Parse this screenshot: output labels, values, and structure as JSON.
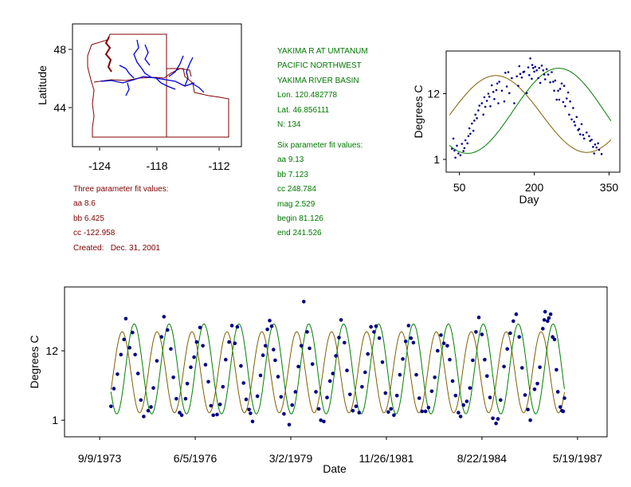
{
  "colors": {
    "map_outline": "#800000",
    "rivers": "#0000dd",
    "points": "#000080",
    "fit_six": "#008000",
    "fit_three": "#806000",
    "info_left": "#800000",
    "info_right": "#007700"
  },
  "map": {
    "ylabel": "Latitude",
    "x_ticks": [
      "-124",
      "-118",
      "-112"
    ],
    "y_ticks": [
      "48",
      "44"
    ]
  },
  "info_left": {
    "heading": "Three parameter fit values:",
    "aa": "aa 8.6",
    "bb": "bb 6.425",
    "cc": "cc -122.958",
    "created": "Created:   Dec. 31, 2001"
  },
  "info_right": {
    "station": "YAKIMA R AT UMTANUM",
    "region": "PACIFIC NORTHWEST",
    "basin": "YAKIMA RIVER BASIN",
    "lon": "Lon. 120.482778",
    "lat": "Lat. 46.856111",
    "n": "N: 134",
    "heading": "Six parameter fit values:",
    "aa": "aa 9.13",
    "bb": "bb 7.123",
    "cc": "cc 248.784",
    "mag": "mag 2.529",
    "begin": "begin 81.126",
    "end": "end 241.526"
  },
  "chart_data": [
    {
      "type": "scatter",
      "xlabel": "Day",
      "ylabel": "Degrees C",
      "xlim": [
        25,
        370
      ],
      "ylim": [
        -1,
        19
      ],
      "x_ticks": [
        "50",
        "200",
        "350"
      ],
      "y_ticks": [
        "12",
        "1"
      ],
      "x_tick_values": [
        50,
        200,
        350
      ],
      "y_tick_values": [
        12,
        1
      ],
      "points": [
        [
          35,
          2.8
        ],
        [
          38,
          4.5
        ],
        [
          40,
          2.5
        ],
        [
          42,
          1.3
        ],
        [
          45,
          3.3
        ],
        [
          48,
          2.0
        ],
        [
          52,
          1.7
        ],
        [
          55,
          3.6
        ],
        [
          58,
          2.4
        ],
        [
          60,
          2.9
        ],
        [
          62,
          4.2
        ],
        [
          66,
          3.7
        ],
        [
          68,
          4.9
        ],
        [
          70,
          6.2
        ],
        [
          72,
          5.3
        ],
        [
          75,
          7.0
        ],
        [
          78,
          5.8
        ],
        [
          80,
          7.5
        ],
        [
          82,
          8.5
        ],
        [
          85,
          7.9
        ],
        [
          88,
          9.2
        ],
        [
          90,
          10.0
        ],
        [
          95,
          10.4
        ],
        [
          98,
          8.5
        ],
        [
          100,
          11.4
        ],
        [
          102,
          9.8
        ],
        [
          105,
          10.8
        ],
        [
          108,
          12.0
        ],
        [
          110,
          11.5
        ],
        [
          112,
          9.9
        ],
        [
          115,
          13.4
        ],
        [
          118,
          12.3
        ],
        [
          120,
          11.1
        ],
        [
          124,
          12.6
        ],
        [
          126,
          13.7
        ],
        [
          128,
          10.4
        ],
        [
          130,
          14.0
        ],
        [
          135,
          12.5
        ],
        [
          140,
          10.7
        ],
        [
          142,
          15.5
        ],
        [
          145,
          13.2
        ],
        [
          148,
          15.6
        ],
        [
          150,
          12.1
        ],
        [
          155,
          14.6
        ],
        [
          160,
          10.4
        ],
        [
          165,
          14.9
        ],
        [
          168,
          13.3
        ],
        [
          170,
          16.6
        ],
        [
          172,
          15.3
        ],
        [
          175,
          14.7
        ],
        [
          178,
          15.6
        ],
        [
          180,
          15.7
        ],
        [
          185,
          12.1
        ],
        [
          188,
          16.4
        ],
        [
          190,
          15.1
        ],
        [
          192,
          17.9
        ],
        [
          195,
          14.5
        ],
        [
          196,
          16.8
        ],
        [
          198,
          16.3
        ],
        [
          200,
          15.7
        ],
        [
          202,
          16.5
        ],
        [
          205,
          15.9
        ],
        [
          208,
          14.6
        ],
        [
          210,
          16.3
        ],
        [
          212,
          13.8
        ],
        [
          215,
          16.7
        ],
        [
          218,
          15.9
        ],
        [
          220,
          15.2
        ],
        [
          222,
          14.4
        ],
        [
          225,
          16.1
        ],
        [
          228,
          15.2
        ],
        [
          232,
          13.9
        ],
        [
          235,
          15.6
        ],
        [
          238,
          14.0
        ],
        [
          240,
          12.5
        ],
        [
          242,
          14.2
        ],
        [
          245,
          11.0
        ],
        [
          248,
          12.5
        ],
        [
          250,
          11.0
        ],
        [
          252,
          12.8
        ],
        [
          255,
          13.7
        ],
        [
          258,
          10.6
        ],
        [
          260,
          13.3
        ],
        [
          262,
          9.9
        ],
        [
          265,
          11.2
        ],
        [
          268,
          12.2
        ],
        [
          270,
          8.5
        ],
        [
          272,
          10.7
        ],
        [
          275,
          7.7
        ],
        [
          278,
          9.6
        ],
        [
          280,
          7.3
        ],
        [
          282,
          6.7
        ],
        [
          285,
          8.1
        ],
        [
          288,
          5.9
        ],
        [
          290,
          6.1
        ],
        [
          292,
          5.2
        ],
        [
          295,
          6.9
        ],
        [
          298,
          5.1
        ],
        [
          300,
          4.5
        ],
        [
          305,
          5.5
        ],
        [
          310,
          4.9
        ],
        [
          312,
          4.1
        ],
        [
          315,
          4.3
        ],
        [
          318,
          3.1
        ],
        [
          320,
          2.0
        ],
        [
          322,
          3.5
        ],
        [
          325,
          3.0
        ],
        [
          328,
          3.7
        ],
        [
          330,
          2.6
        ],
        [
          335,
          1.9
        ]
      ],
      "fits": [
        {
          "kind": "six-parameter",
          "aa": 9.13,
          "bb": 7.123,
          "cc": 248.784,
          "mag": 2.529,
          "begin": 81.126,
          "end": 241.526
        },
        {
          "kind": "three-parameter",
          "aa": 8.6,
          "bb": 6.425,
          "cc": -122.958
        }
      ]
    },
    {
      "type": "scatter",
      "xlabel": "Date",
      "ylabel": "Degrees C",
      "x_ticks": [
        "9/9/1973",
        "6/5/1976",
        "3/2/1979",
        "11/26/1981",
        "8/22/1984",
        "5/19/1987"
      ],
      "x_tick_dates": [
        "1973-09-09",
        "1976-06-05",
        "1979-03-02",
        "1981-11-26",
        "1984-08-22",
        "1987-05-19"
      ],
      "xlim": [
        "1972-09-15",
        "1988-03-15"
      ],
      "y_ticks": [
        "12",
        "1"
      ],
      "y_tick_values": [
        12,
        1
      ],
      "ylim": [
        -1.5,
        22
      ],
      "points": [
        [
          "1974-01-06",
          3.2
        ],
        [
          "1974-02-05",
          6.0
        ],
        [
          "1974-03-14",
          8.3
        ],
        [
          "1974-04-20",
          11.4
        ],
        [
          "1974-05-22",
          13.8
        ],
        [
          "1974-06-10",
          17.1
        ],
        [
          "1974-07-20",
          12.5
        ],
        [
          "1974-08-19",
          14.9
        ],
        [
          "1974-09-15",
          11.4
        ],
        [
          "1974-10-15",
          8.4
        ],
        [
          "1974-11-14",
          4.2
        ],
        [
          "1974-12-14",
          1.6
        ],
        [
          "1975-01-30",
          2.5
        ],
        [
          "1975-02-28",
          3.1
        ],
        [
          "1975-03-25",
          6.1
        ],
        [
          "1975-05-01",
          10.4
        ],
        [
          "1975-06-18",
          14.2
        ],
        [
          "1975-07-14",
          17.4
        ],
        [
          "1975-08-20",
          15.3
        ],
        [
          "1975-09-24",
          12.3
        ],
        [
          "1975-10-20",
          7.8
        ],
        [
          "1975-11-20",
          4.4
        ],
        [
          "1975-12-25",
          2.2
        ],
        [
          "1976-01-16",
          1.8
        ],
        [
          "1976-02-25",
          4.4
        ],
        [
          "1976-03-14",
          6.8
        ],
        [
          "1976-04-20",
          9.4
        ],
        [
          "1976-05-24",
          11.0
        ],
        [
          "1976-06-20",
          13.4
        ],
        [
          "1976-07-25",
          15.7
        ],
        [
          "1976-08-24",
          12.8
        ],
        [
          "1976-09-20",
          9.8
        ],
        [
          "1976-10-20",
          7.1
        ],
        [
          "1976-11-17",
          3.3
        ],
        [
          "1976-12-11",
          1.8
        ],
        [
          "1977-01-20",
          1.9
        ],
        [
          "1977-02-20",
          3.5
        ],
        [
          "1977-03-22",
          6.3
        ],
        [
          "1977-04-20",
          10.6
        ],
        [
          "1977-05-25",
          13.4
        ],
        [
          "1977-06-24",
          16.0
        ],
        [
          "1977-07-25",
          13.2
        ],
        [
          "1977-08-20",
          15.8
        ],
        [
          "1977-09-26",
          9.6
        ],
        [
          "1977-10-24",
          6.9
        ],
        [
          "1977-11-20",
          4.3
        ],
        [
          "1977-12-20",
          2.7
        ],
        [
          "1978-01-04",
          2.1
        ],
        [
          "1978-01-26",
          0.8
        ],
        [
          "1978-03-18",
          4.8
        ],
        [
          "1978-04-19",
          8.1
        ],
        [
          "1978-05-15",
          11.3
        ],
        [
          "1978-06-10",
          12.8
        ],
        [
          "1978-06-30",
          15.4
        ],
        [
          "1978-07-24",
          16.8
        ],
        [
          "1978-08-14",
          15.9
        ],
        [
          "1978-09-02",
          12.2
        ],
        [
          "1978-09-20",
          10.5
        ],
        [
          "1978-10-20",
          7.9
        ],
        [
          "1978-11-20",
          4.7
        ],
        [
          "1978-12-20",
          2.0
        ],
        [
          "1979-02-13",
          0.3
        ],
        [
          "1979-03-16",
          3.4
        ],
        [
          "1979-04-19",
          5.5
        ],
        [
          "1979-05-20",
          9.5
        ],
        [
          "1979-06-20",
          12.8
        ],
        [
          "1979-07-16",
          19.8
        ],
        [
          "1979-08-20",
          15.0
        ],
        [
          "1979-09-14",
          12.4
        ],
        [
          "1979-10-15",
          9.9
        ],
        [
          "1979-11-20",
          5.5
        ],
        [
          "1979-12-20",
          2.8
        ],
        [
          "1980-01-10",
          1.0
        ],
        [
          "1980-02-10",
          0.8
        ],
        [
          "1980-03-15",
          4.6
        ],
        [
          "1980-04-15",
          7.2
        ],
        [
          "1980-05-15",
          8.4
        ],
        [
          "1980-06-16",
          11.2
        ],
        [
          "1980-07-18",
          14.1
        ],
        [
          "1980-08-09",
          16.9
        ],
        [
          "1980-09-13",
          13.3
        ],
        [
          "1980-10-10",
          8.9
        ],
        [
          "1980-11-10",
          5.1
        ],
        [
          "1980-12-10",
          2.5
        ],
        [
          "1981-01-13",
          3.2
        ],
        [
          "1981-02-14",
          2.2
        ],
        [
          "1981-03-16",
          6.3
        ],
        [
          "1981-04-18",
          8.6
        ],
        [
          "1981-05-16",
          11.5
        ],
        [
          "1981-06-18",
          15.8
        ],
        [
          "1981-07-19",
          15.0
        ],
        [
          "1981-08-10",
          15.9
        ],
        [
          "1981-09-13",
          14.0
        ],
        [
          "1981-10-16",
          10.2
        ],
        [
          "1981-11-16",
          5.3
        ],
        [
          "1981-12-16",
          2.3
        ],
        [
          "1982-01-13",
          2.8
        ],
        [
          "1982-02-13",
          1.8
        ],
        [
          "1982-03-16",
          4.9
        ],
        [
          "1982-04-16",
          8.2
        ],
        [
          "1982-05-17",
          10.7
        ],
        [
          "1982-06-16",
          13.5
        ],
        [
          "1982-07-16",
          16.0
        ],
        [
          "1982-08-10",
          14.0
        ],
        [
          "1982-09-05",
          13.3
        ],
        [
          "1982-10-05",
          8.2
        ],
        [
          "1982-11-05",
          4.5
        ],
        [
          "1982-12-05",
          2.4
        ],
        [
          "1983-01-10",
          2.4
        ],
        [
          "1983-02-10",
          3.0
        ],
        [
          "1983-03-16",
          5.6
        ],
        [
          "1983-04-16",
          7.8
        ],
        [
          "1983-05-16",
          12.0
        ],
        [
          "1983-06-20",
          14.5
        ],
        [
          "1983-07-20",
          13.2
        ],
        [
          "1983-08-25",
          12.8
        ],
        [
          "1983-09-20",
          10.6
        ],
        [
          "1983-10-20",
          7.2
        ],
        [
          "1983-11-20",
          4.9
        ],
        [
          "1983-12-20",
          2.2
        ],
        [
          "1984-01-11",
          1.6
        ],
        [
          "1984-02-10",
          3.4
        ],
        [
          "1984-03-16",
          4.0
        ],
        [
          "1984-04-18",
          6.1
        ],
        [
          "1984-05-18",
          10.5
        ],
        [
          "1984-06-20",
          15.0
        ],
        [
          "1984-07-20",
          17.3
        ],
        [
          "1984-08-22",
          14.6
        ],
        [
          "1984-09-20",
          10.6
        ],
        [
          "1984-10-14",
          8.0
        ],
        [
          "1984-11-14",
          4.6
        ],
        [
          "1984-12-14",
          1.3
        ],
        [
          "1985-01-16",
          0.5
        ],
        [
          "1985-02-05",
          1.2
        ],
        [
          "1985-03-05",
          4.2
        ],
        [
          "1985-04-10",
          9.5
        ],
        [
          "1985-05-14",
          12.3
        ],
        [
          "1985-06-14",
          14.8
        ],
        [
          "1985-07-16",
          16.7
        ],
        [
          "1985-08-15",
          17.8
        ],
        [
          "1985-09-16",
          14.2
        ],
        [
          "1985-10-16",
          9.3
        ],
        [
          "1985-11-16",
          5.0
        ],
        [
          "1985-12-16",
          2.7
        ],
        [
          "1986-01-10",
          1.0
        ],
        [
          "1986-02-24",
          5.9
        ],
        [
          "1986-03-25",
          6.8
        ],
        [
          "1986-04-20",
          9.4
        ],
        [
          "1986-05-21",
          15.5
        ],
        [
          "1986-06-05",
          16.9
        ],
        [
          "1986-06-14",
          18.2
        ],
        [
          "1986-07-10",
          16.7
        ],
        [
          "1986-07-23",
          17.2
        ],
        [
          "1986-08-10",
          17.8
        ],
        [
          "1986-08-31",
          14.2
        ],
        [
          "1986-09-20",
          13.8
        ],
        [
          "1986-10-10",
          9.0
        ],
        [
          "1986-10-25",
          5.5
        ],
        [
          "1986-11-20",
          3.1
        ],
        [
          "1986-12-07",
          2.5
        ],
        [
          "1986-12-20",
          2.4
        ],
        [
          "1987-01-02",
          4.5
        ]
      ]
    }
  ]
}
